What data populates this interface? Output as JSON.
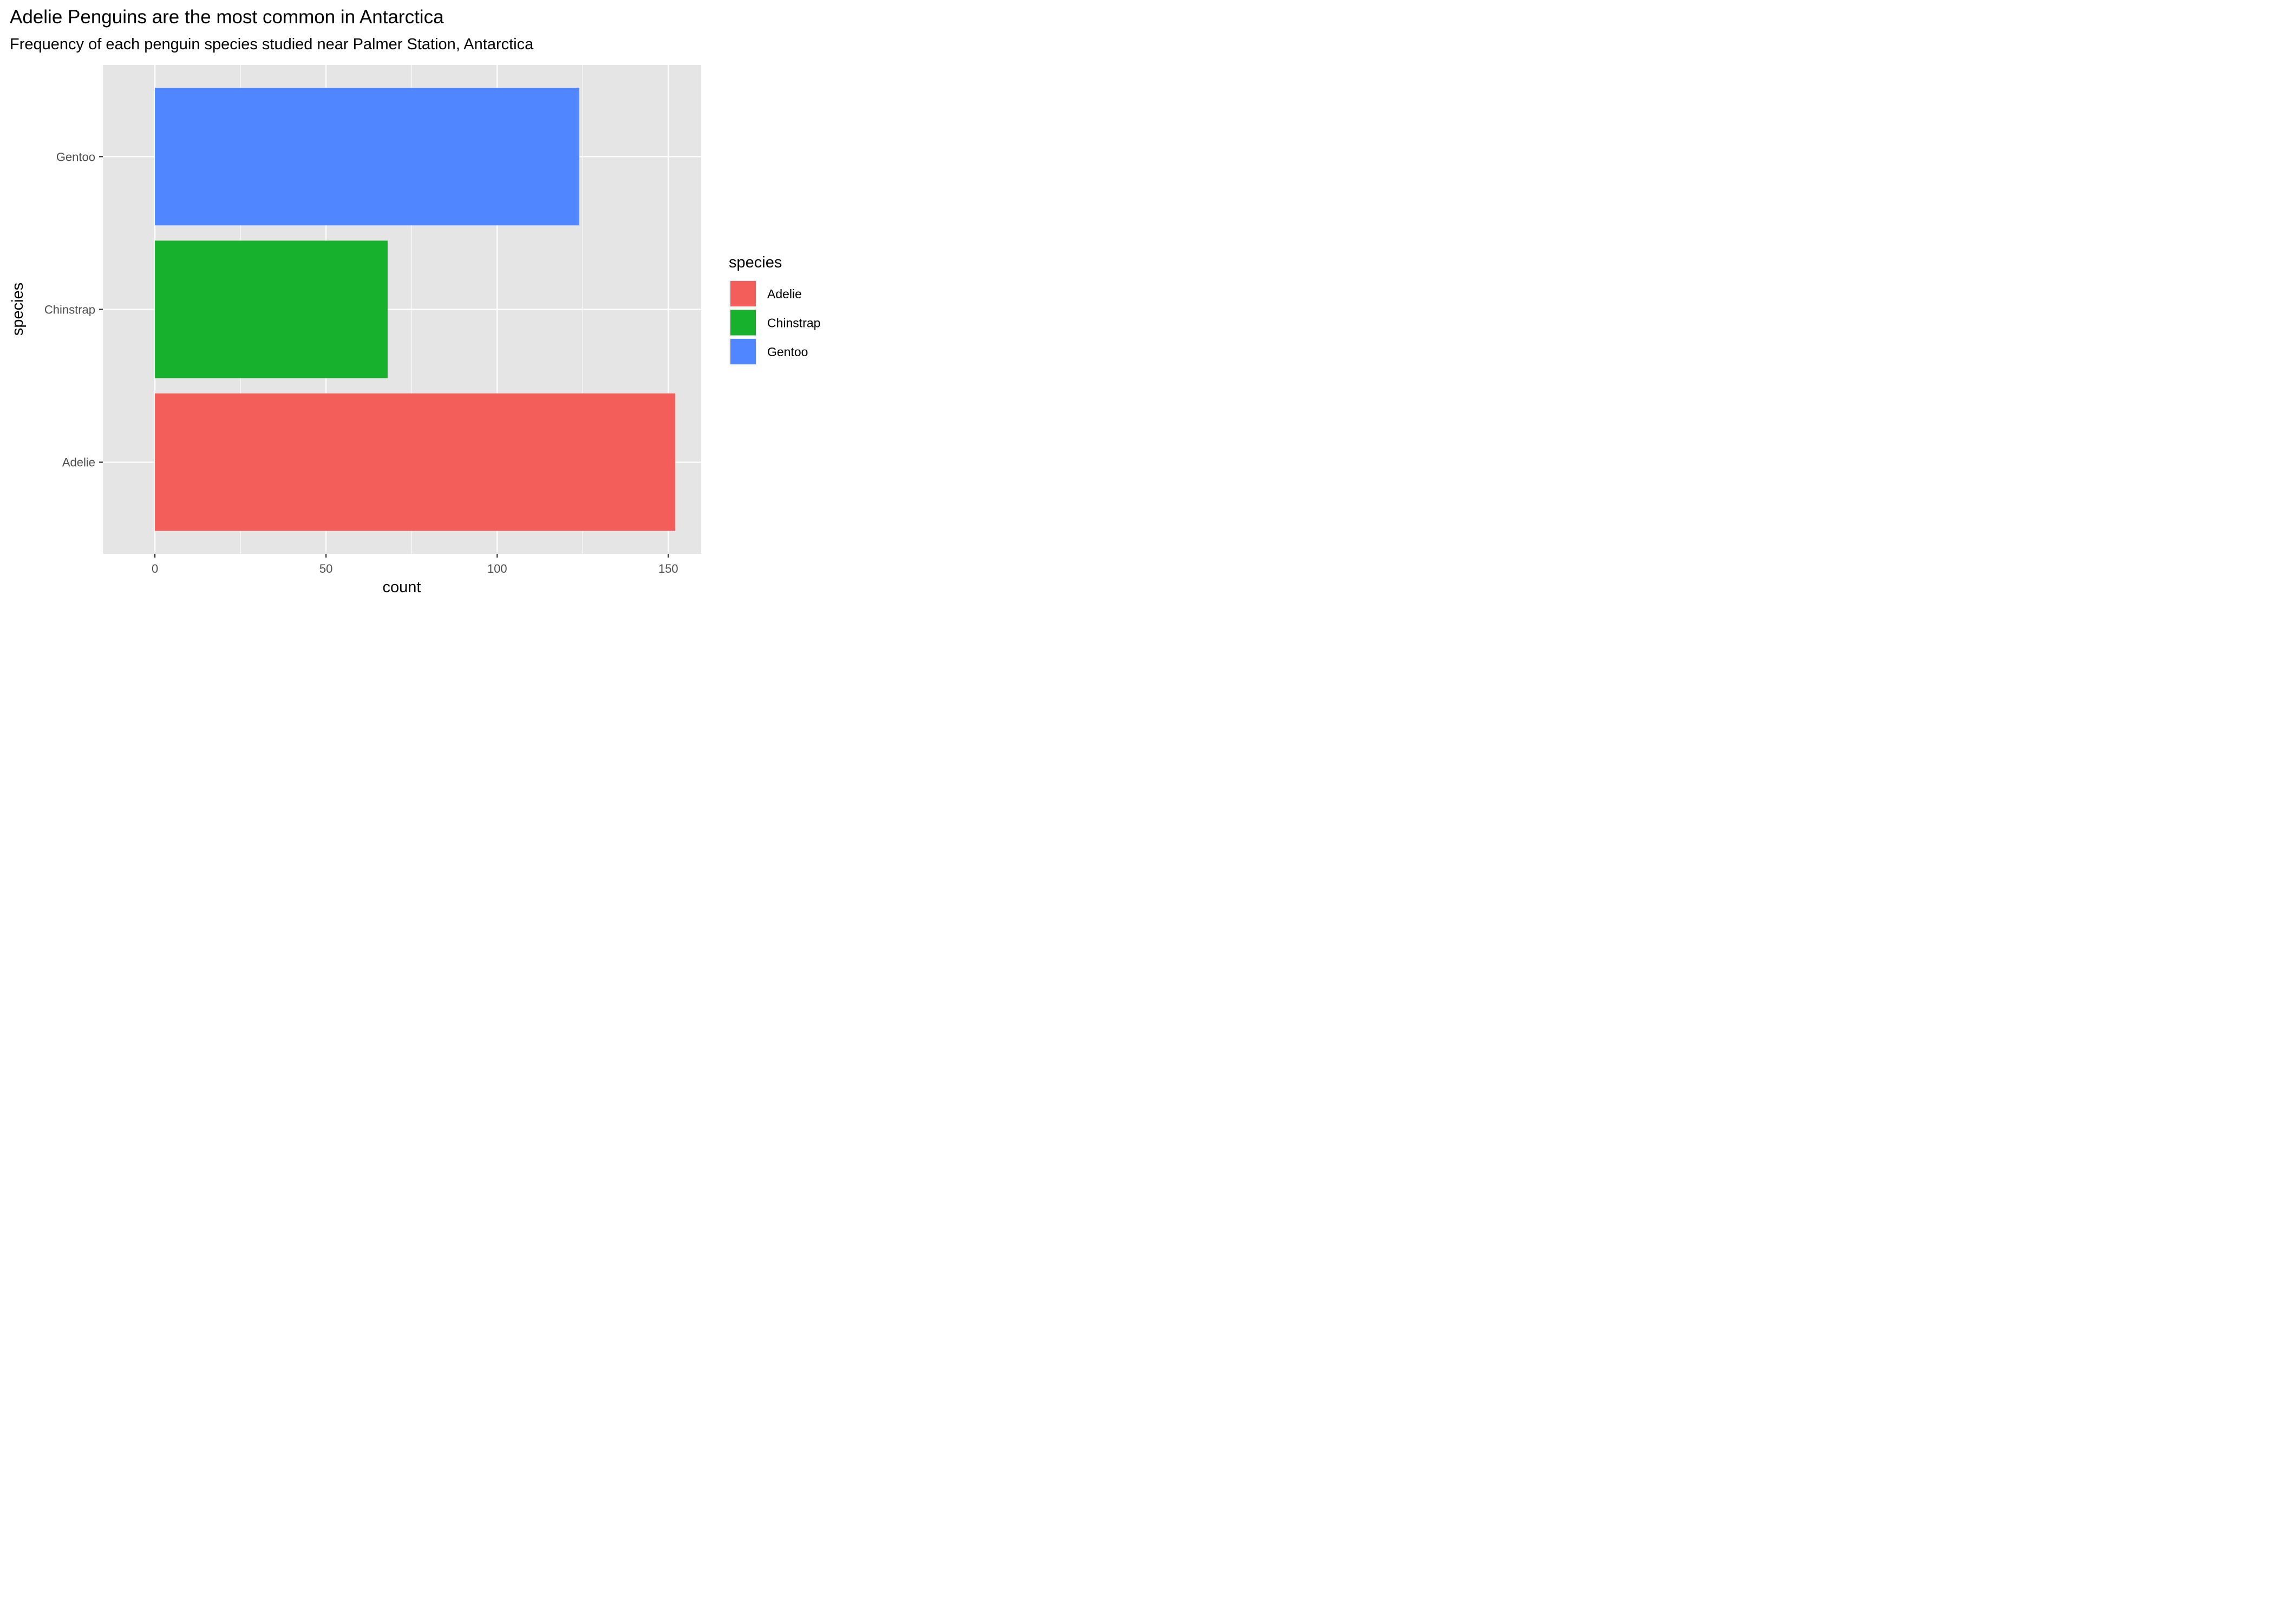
{
  "chart_data": {
    "type": "bar",
    "orientation": "horizontal",
    "title": "Adelie Penguins are the most common in Antarctica",
    "subtitle": "Frequency of each penguin species studied near Palmer Station, Antarctica",
    "xlabel": "count",
    "ylabel": "species",
    "categories": [
      "Adelie",
      "Chinstrap",
      "Gentoo"
    ],
    "values": [
      152,
      68,
      124
    ],
    "colors": [
      "#F35E5A",
      "#18B12E",
      "#5086FF"
    ],
    "xlim": [
      -15.2,
      159.6
    ],
    "xticks": [
      0,
      50,
      100,
      150
    ],
    "xtick_labels": [
      "0",
      "50",
      "100",
      "150"
    ],
    "grid": true,
    "background": "#E5E5E5",
    "grid_color": "#FFFFFF",
    "legend": {
      "title": "species",
      "position": "right",
      "entries": [
        "Adelie",
        "Chinstrap",
        "Gentoo"
      ]
    }
  }
}
